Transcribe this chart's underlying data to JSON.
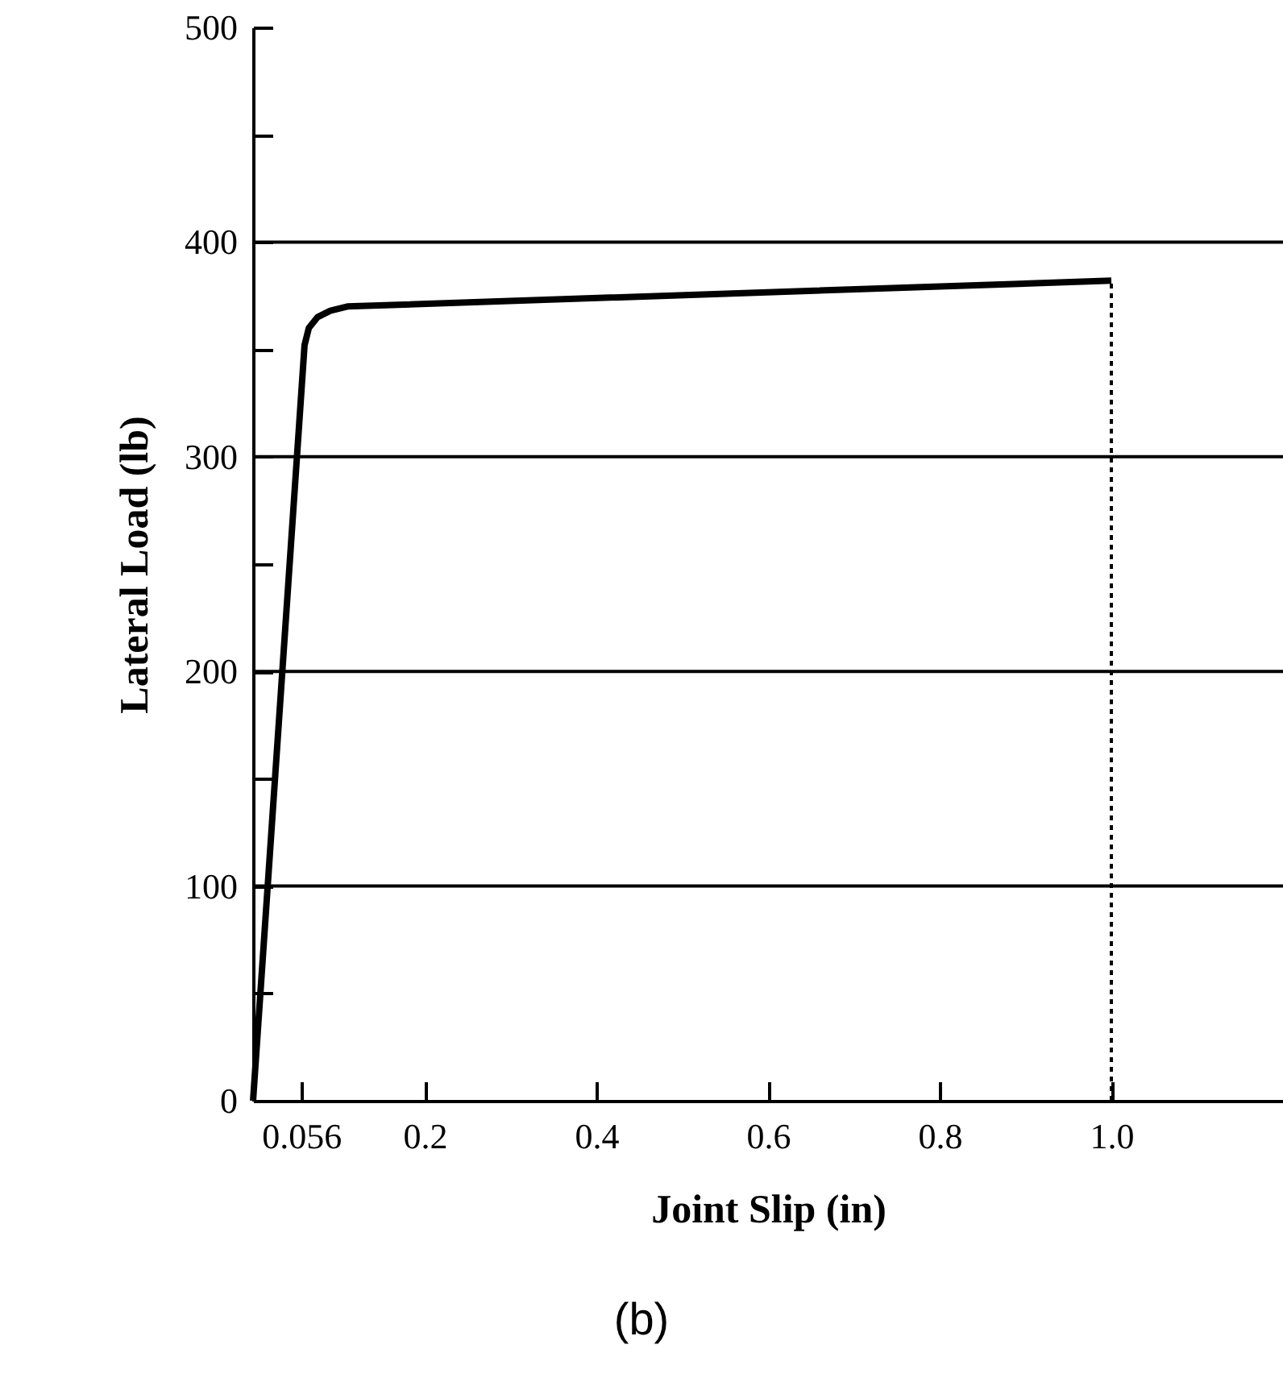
{
  "chart_data": {
    "type": "line",
    "xlabel": "Joint Slip  (in)",
    "ylabel": "Lateral Load (lb)",
    "xlim": [
      0,
      1.2
    ],
    "ylim": [
      0,
      500
    ],
    "xticks": [
      0.056,
      0.2,
      0.4,
      0.6,
      0.8,
      {
        "value": 1,
        "label": "1.0"
      }
    ],
    "yticks": [
      0,
      {
        "value": 50,
        "label": null
      },
      100,
      {
        "value": 150,
        "label": null
      },
      200,
      {
        "value": 250,
        "label": null
      },
      300,
      {
        "value": 350,
        "label": null
      },
      400,
      {
        "value": 450,
        "label": null
      },
      500
    ],
    "grid": "y",
    "annotations": [
      "(b)"
    ],
    "series": [
      {
        "color": "#000000",
        "line_style": "solid",
        "x": [
          0,
          0.06,
          0.065,
          0.075,
          0.09,
          0.11,
          1.0
        ],
        "values": [
          0,
          352,
          360,
          365,
          368,
          370,
          382
        ]
      },
      {
        "color": "#000000",
        "line_style": "dotted",
        "x": [
          1.0,
          1.0
        ],
        "values": [
          0,
          382
        ]
      }
    ]
  }
}
